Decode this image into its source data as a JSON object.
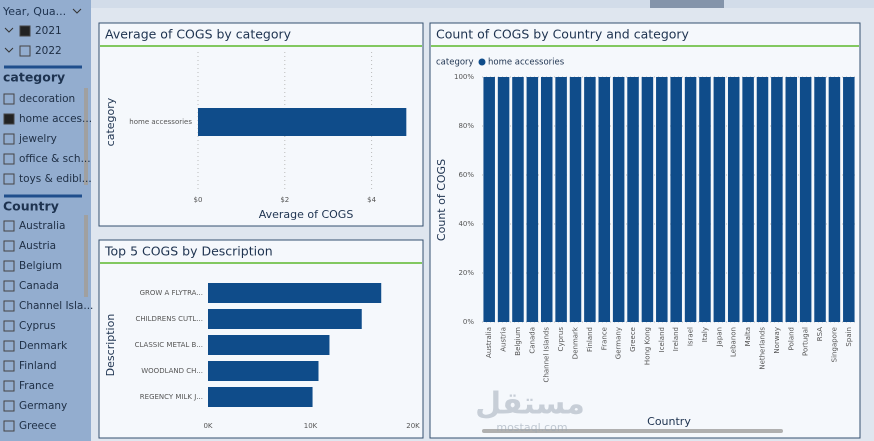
{
  "sidebar": {
    "year": {
      "title": "Year, Qua...",
      "items": [
        {
          "label": "2021",
          "checked": true
        },
        {
          "label": "2022",
          "checked": false
        }
      ]
    },
    "category": {
      "title": "category",
      "items": [
        {
          "label": "decoration",
          "checked": false
        },
        {
          "label": "home acces...",
          "checked": true
        },
        {
          "label": "jewelry",
          "checked": false
        },
        {
          "label": "office & sch...",
          "checked": false
        },
        {
          "label": "toys & edibl...",
          "checked": false
        }
      ]
    },
    "country": {
      "title": "Country",
      "items": [
        {
          "label": "Australia",
          "checked": false
        },
        {
          "label": "Austria",
          "checked": false
        },
        {
          "label": "Belgium",
          "checked": false
        },
        {
          "label": "Canada",
          "checked": false
        },
        {
          "label": "Channel Isla...",
          "checked": false
        },
        {
          "label": "Cyprus",
          "checked": false
        },
        {
          "label": "Denmark",
          "checked": false
        },
        {
          "label": "Finland",
          "checked": false
        },
        {
          "label": "France",
          "checked": false
        },
        {
          "label": "Germany",
          "checked": false
        },
        {
          "label": "Greece",
          "checked": false
        }
      ]
    }
  },
  "chart_data": [
    {
      "type": "hbar",
      "title": "Average of COGS by category",
      "x_label": "Average of COGS",
      "y_label": "category",
      "categories": [
        "home accessories"
      ],
      "values": [
        4.8
      ],
      "color": "#0f4c8a",
      "xlim": [
        0,
        5
      ],
      "xticks": [
        {
          "value": 0,
          "label": "$0"
        },
        {
          "value": 2,
          "label": "$2"
        },
        {
          "value": 4,
          "label": "$4"
        }
      ],
      "grid": true
    },
    {
      "type": "hbar",
      "title": "Top 5 COGS by Description",
      "y_label": "Description",
      "categories": [
        "GROW A FLYTRA...",
        "CHILDRENS CUTL...",
        "CLASSIC METAL B...",
        "WOODLAND CH...",
        "REGENCY MILK J..."
      ],
      "values": [
        16900,
        15000,
        11850,
        10780,
        10200
      ],
      "color": "#0f4c8a",
      "xlim": [
        0,
        20000
      ],
      "xticks": [
        {
          "value": 0,
          "label": "0K"
        },
        {
          "value": 10000,
          "label": "10K"
        },
        {
          "value": 20000,
          "label": "20K"
        }
      ],
      "grid": false
    },
    {
      "type": "bar",
      "title": "Count of COGS by Country and category",
      "x_label": "Country",
      "y_label": "Count of COGS",
      "legend_title": "category",
      "categories": [
        "Australia",
        "Austria",
        "Belgium",
        "Canada",
        "Channel Islands",
        "Cyprus",
        "Denmark",
        "Finland",
        "France",
        "Germany",
        "Greece",
        "Hong Kong",
        "Iceland",
        "Ireland",
        "Israel",
        "Italy",
        "Japan",
        "Lebanon",
        "Malta",
        "Netherlands",
        "Norway",
        "Poland",
        "Portugal",
        "RSA",
        "Singapore",
        "Spain"
      ],
      "series": [
        {
          "name": "home accessories",
          "color": "#0f4c8a",
          "values": [
            100,
            100,
            100,
            100,
            100,
            100,
            100,
            100,
            100,
            100,
            100,
            100,
            100,
            100,
            100,
            100,
            100,
            100,
            100,
            100,
            100,
            100,
            100,
            100,
            100,
            100
          ]
        }
      ],
      "ylim": [
        0,
        100
      ],
      "yticks": [
        {
          "value": 0,
          "label": "0%"
        },
        {
          "value": 20,
          "label": "20%"
        },
        {
          "value": 40,
          "label": "40%"
        },
        {
          "value": 60,
          "label": "60%"
        },
        {
          "value": 80,
          "label": "80%"
        },
        {
          "value": 100,
          "label": "100%"
        }
      ],
      "grid": true
    }
  ],
  "watermark": {
    "arabic": "مستقل",
    "latin": "mostaql.com"
  }
}
